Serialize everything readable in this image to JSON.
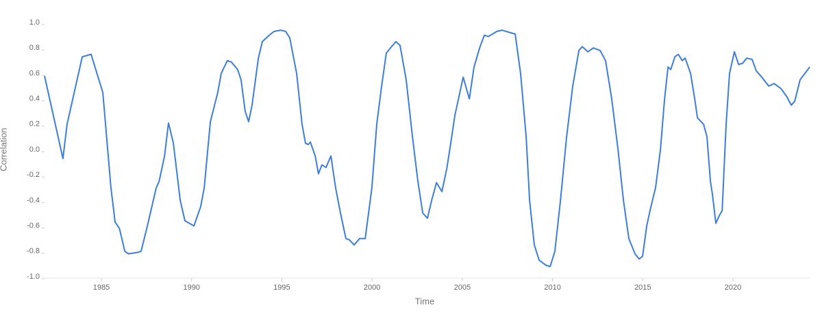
{
  "chart_data": {
    "type": "line",
    "x_label": "Time",
    "y_label": "Correlation",
    "xlim": [
      1981.85,
      2024.25
    ],
    "xticks": [
      1985,
      1990,
      1995,
      2000,
      2005,
      2010,
      2015,
      2020
    ],
    "ylim": [
      -1,
      1
    ],
    "yticks": [
      {
        "value": 1,
        "label": "1.0"
      },
      0.8,
      0.6,
      0.4,
      0.2,
      {
        "value": 0,
        "label": "0.0"
      },
      -0.2,
      -0.4,
      -0.6,
      -0.8,
      {
        "value": -1,
        "label": "-1.0"
      }
    ],
    "grid": false,
    "series": [
      {
        "color": "#3b7ddd",
        "x": [
          1981.85,
          1982.87,
          1983.1,
          1983.94,
          1984.43,
          1985.08,
          1985.53,
          1985.76,
          1986.0,
          1986.3,
          1986.5,
          1986.97,
          1987.2,
          1987.55,
          1988.04,
          1988.2,
          1988.5,
          1988.72,
          1988.99,
          1989.37,
          1989.63,
          1990.13,
          1990.5,
          1990.7,
          1991.04,
          1991.45,
          1991.64,
          1991.98,
          1992.2,
          1992.55,
          1992.74,
          1992.97,
          1993.16,
          1993.35,
          1993.7,
          1993.92,
          1994.3,
          1994.57,
          1994.95,
          1995.21,
          1995.44,
          1995.82,
          1996.12,
          1996.31,
          1996.47,
          1996.58,
          1996.85,
          1997.03,
          1997.22,
          1997.45,
          1997.72,
          1997.98,
          1998.25,
          1998.55,
          1998.74,
          1999.01,
          1999.31,
          1999.62,
          1999.99,
          2000.26,
          2000.53,
          2000.79,
          2001.02,
          2001.32,
          2001.55,
          2001.89,
          2002.24,
          2002.54,
          2002.81,
          2003.07,
          2003.3,
          2003.57,
          2003.87,
          2004.14,
          2004.36,
          2004.59,
          2005.05,
          2005.39,
          2005.65,
          2005.96,
          2006.22,
          2006.45,
          2006.91,
          2007.21,
          2007.67,
          2007.93,
          2008.23,
          2008.54,
          2008.73,
          2008.99,
          2009.26,
          2009.64,
          2009.87,
          2010.13,
          2010.44,
          2010.78,
          2011.12,
          2011.46,
          2011.65,
          2011.96,
          2012.26,
          2012.64,
          2012.94,
          2013.28,
          2013.63,
          2013.93,
          2014.23,
          2014.57,
          2014.8,
          2014.99,
          2015.22,
          2015.45,
          2015.71,
          2015.98,
          2016.21,
          2016.4,
          2016.55,
          2016.78,
          2016.97,
          2017.19,
          2017.35,
          2017.65,
          2017.88,
          2018.03,
          2018.37,
          2018.56,
          2018.75,
          2018.86,
          2019.05,
          2019.24,
          2019.4,
          2019.62,
          2019.81,
          2020.08,
          2020.31,
          2020.54,
          2020.76,
          2021.06,
          2021.29,
          2021.6,
          2021.98,
          2022.28,
          2022.66,
          2022.97,
          2023.23,
          2023.42,
          2023.72,
          2023.99,
          2024.25
        ],
        "values": [
          0.58,
          -0.07,
          0.2,
          0.73,
          0.75,
          0.45,
          -0.3,
          -0.57,
          -0.62,
          -0.8,
          -0.82,
          -0.81,
          -0.8,
          -0.6,
          -0.3,
          -0.25,
          -0.05,
          0.21,
          0.05,
          -0.4,
          -0.56,
          -0.6,
          -0.45,
          -0.3,
          0.22,
          0.45,
          0.6,
          0.7,
          0.69,
          0.63,
          0.55,
          0.3,
          0.22,
          0.35,
          0.72,
          0.85,
          0.9,
          0.93,
          0.94,
          0.93,
          0.88,
          0.6,
          0.2,
          0.05,
          0.04,
          0.06,
          -0.05,
          -0.19,
          -0.12,
          -0.14,
          -0.05,
          -0.3,
          -0.5,
          -0.7,
          -0.71,
          -0.75,
          -0.7,
          -0.7,
          -0.3,
          0.2,
          0.5,
          0.76,
          0.8,
          0.85,
          0.82,
          0.55,
          0.1,
          -0.25,
          -0.5,
          -0.54,
          -0.4,
          -0.26,
          -0.33,
          -0.15,
          0.05,
          0.27,
          0.57,
          0.4,
          0.65,
          0.8,
          0.9,
          0.89,
          0.93,
          0.94,
          0.92,
          0.91,
          0.6,
          0.1,
          -0.4,
          -0.75,
          -0.87,
          -0.91,
          -0.92,
          -0.8,
          -0.4,
          0.1,
          0.5,
          0.78,
          0.81,
          0.77,
          0.8,
          0.78,
          0.7,
          0.4,
          0.0,
          -0.4,
          -0.7,
          -0.82,
          -0.86,
          -0.84,
          -0.6,
          -0.45,
          -0.3,
          0.0,
          0.4,
          0.65,
          0.63,
          0.73,
          0.75,
          0.7,
          0.72,
          0.6,
          0.4,
          0.25,
          0.2,
          0.1,
          -0.25,
          -0.35,
          -0.58,
          -0.52,
          -0.48,
          0.2,
          0.6,
          0.77,
          0.67,
          0.68,
          0.72,
          0.71,
          0.62,
          0.57,
          0.5,
          0.52,
          0.48,
          0.42,
          0.35,
          0.38,
          0.55,
          0.6,
          0.65
        ]
      }
    ]
  }
}
